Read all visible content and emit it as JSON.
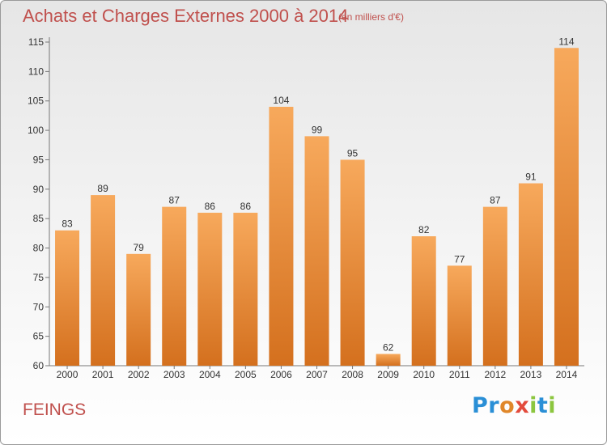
{
  "header": {
    "title": "Achats et Charges Externes 2000 à 2014",
    "subtitle": "(en milliers d'€)"
  },
  "footer": {
    "commune": "FEINGS",
    "logo_text": "Proxiti",
    "logo_colors": [
      "#2a8fd6",
      "#e0872a",
      "#e34b3c",
      "#8cc63f"
    ]
  },
  "chart_data": {
    "type": "bar",
    "title": "Achats et Charges Externes 2000 à 2014",
    "subtitle": "(en milliers d'€)",
    "categories": [
      "2000",
      "2001",
      "2002",
      "2003",
      "2004",
      "2005",
      "2006",
      "2007",
      "2008",
      "2009",
      "2010",
      "2011",
      "2012",
      "2013",
      "2014"
    ],
    "values": [
      83,
      89,
      79,
      87,
      86,
      86,
      104,
      99,
      95,
      62,
      82,
      77,
      87,
      91,
      114
    ],
    "ylim": [
      60,
      115
    ],
    "yticks": [
      60,
      65,
      70,
      75,
      80,
      85,
      90,
      95,
      100,
      105,
      110,
      115
    ],
    "grid": false,
    "bar_color_top": "#f7a95c",
    "bar_color_bottom": "#d4701e",
    "label_color": "#333333"
  }
}
